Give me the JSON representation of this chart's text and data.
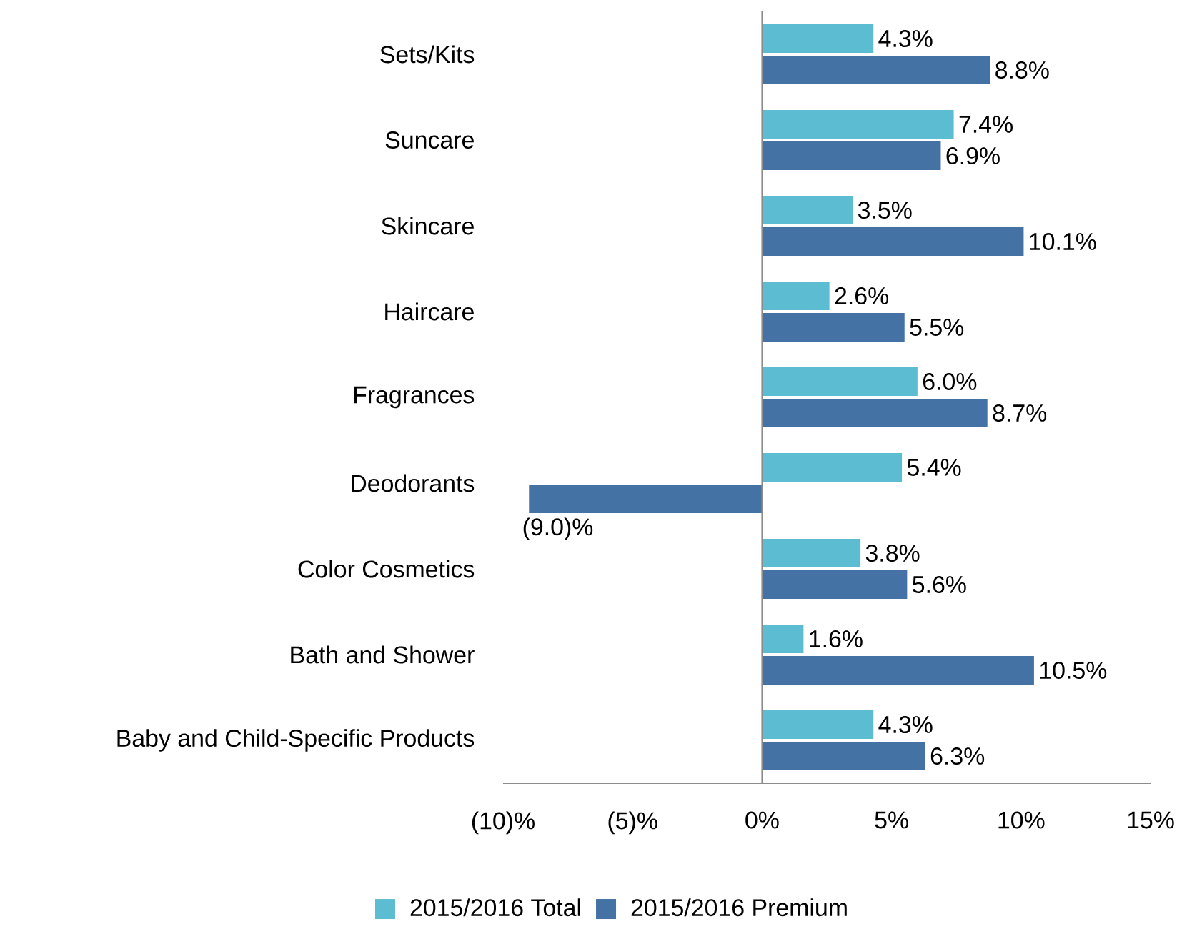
{
  "chart_data": {
    "type": "bar",
    "orientation": "horizontal",
    "categories": [
      "Sets/Kits",
      "Suncare",
      "Skincare",
      "Haircare",
      "Fragrances",
      "Deodorants",
      "Color Cosmetics",
      "Bath and Shower",
      "Baby and Child-Specific Products"
    ],
    "series": [
      {
        "name": "2015/2016 Total",
        "color": "#5bbcd2",
        "values": [
          4.3,
          7.4,
          3.5,
          2.6,
          6.0,
          5.4,
          3.8,
          1.6,
          4.3
        ],
        "value_labels": [
          "4.3%",
          "7.4%",
          "3.5%",
          "2.6%",
          "6.0%",
          "5.4%",
          "3.8%",
          "1.6%",
          "4.3%"
        ]
      },
      {
        "name": "2015/2016 Premium",
        "color": "#4472a4",
        "values": [
          8.8,
          6.9,
          10.1,
          5.5,
          8.7,
          -9.0,
          5.6,
          10.5,
          6.3
        ],
        "value_labels": [
          "8.8%",
          "6.9%",
          "10.1%",
          "5.5%",
          "8.7%",
          "(9.0)%",
          "5.6%",
          "10.5%",
          "6.3%"
        ]
      }
    ],
    "xlim": [
      -10,
      15
    ],
    "xticks": [
      {
        "value": -10,
        "label": "(10)%"
      },
      {
        "value": -5,
        "label": "(5)%"
      },
      {
        "value": 0,
        "label": "0%"
      },
      {
        "value": 5,
        "label": "5%"
      },
      {
        "value": 10,
        "label": "10%"
      },
      {
        "value": 15,
        "label": "15%"
      }
    ],
    "legend": "bottom"
  }
}
